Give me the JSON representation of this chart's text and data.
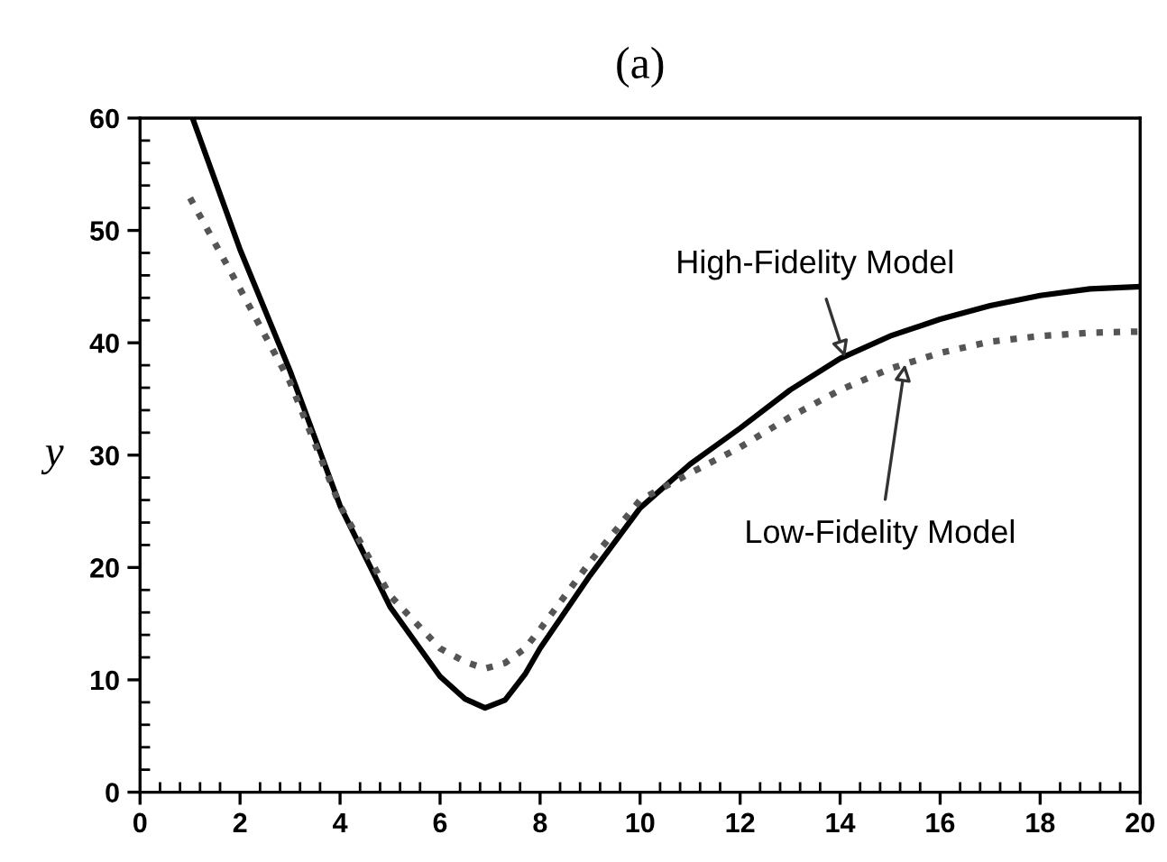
{
  "chart_data": {
    "type": "line",
    "title": "(a)",
    "ylabel": "y",
    "xlim": [
      0,
      20
    ],
    "xticks": [
      0,
      2,
      4,
      6,
      8,
      10,
      12,
      14,
      16,
      18,
      20
    ],
    "ylim": [
      0,
      60
    ],
    "yticks": [
      0,
      10,
      20,
      30,
      40,
      50,
      60
    ],
    "grid": false,
    "marker": "none",
    "series": [
      {
        "color": "#000000",
        "line_style": "solid",
        "x": [
          1.05,
          2,
          3,
          4,
          5,
          6,
          6.5,
          6.9,
          7.3,
          7.7,
          8,
          9,
          10,
          11,
          12,
          13,
          14,
          15,
          16,
          17,
          18,
          19,
          20
        ],
        "values": [
          60,
          48.3,
          37.5,
          25.5,
          16.5,
          10.3,
          8.3,
          7.5,
          8.2,
          10.5,
          12.8,
          19.3,
          25.3,
          29.2,
          32.4,
          35.8,
          38.6,
          40.6,
          42.1,
          43.3,
          44.2,
          44.8,
          45
        ]
      },
      {
        "color": "#555555",
        "line_style": "dotted",
        "x": [
          1,
          2,
          3,
          4,
          5,
          6,
          6.5,
          6.9,
          7.3,
          7.7,
          8,
          9,
          10,
          11,
          12,
          13,
          14,
          15,
          16,
          17,
          18,
          19,
          20
        ],
        "values": [
          52.9,
          44.8,
          36.5,
          25.5,
          17.5,
          12.8,
          11.6,
          11,
          11.5,
          12.8,
          14.5,
          20.5,
          26,
          28.4,
          30.7,
          33.4,
          35.8,
          37.7,
          39.1,
          40.1,
          40.6,
          40.9,
          41
        ]
      }
    ],
    "annotations": [
      {
        "text": "High-Fidelity Model",
        "x": 14.1,
        "y": 38.7
      },
      {
        "text": "Low-Fidelity Model",
        "x": 15.3,
        "y": 38.1
      }
    ]
  }
}
